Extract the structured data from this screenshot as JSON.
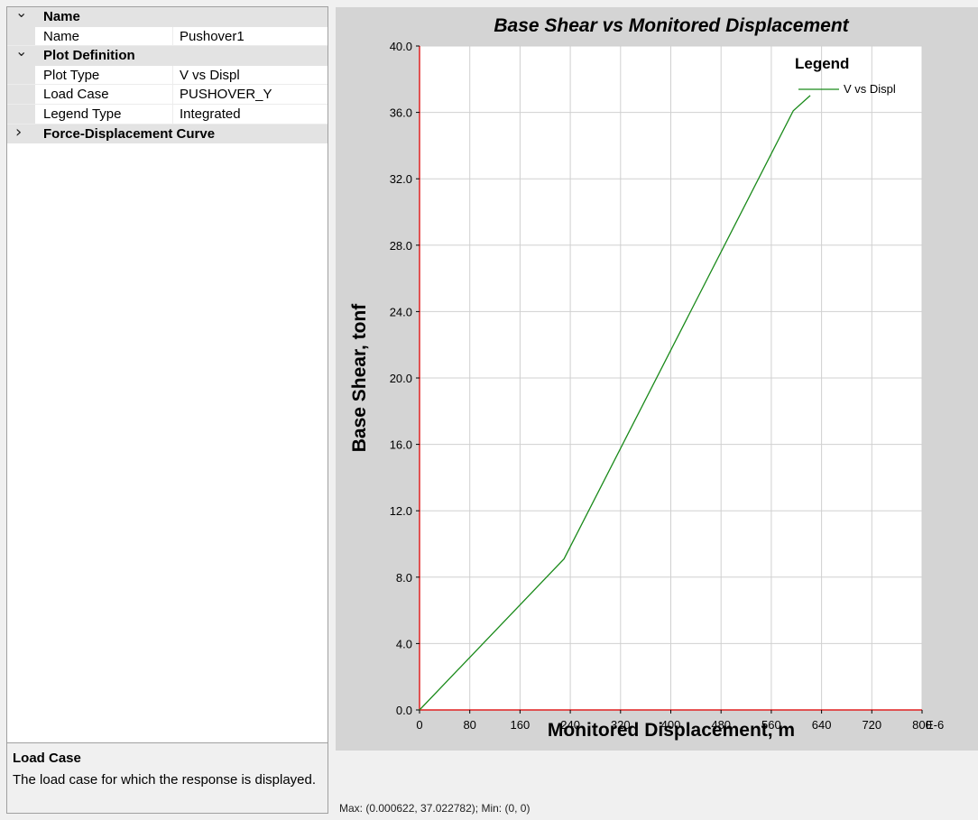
{
  "properties": {
    "categories": [
      {
        "label": "Name",
        "expanded": true,
        "icon": "chevron-down-icon",
        "rows": [
          {
            "name": "Name",
            "value": "Pushover1"
          }
        ]
      },
      {
        "label": "Plot Definition",
        "expanded": true,
        "icon": "chevron-down-icon",
        "rows": [
          {
            "name": "Plot Type",
            "value": "V vs Displ"
          },
          {
            "name": "Load Case",
            "value": "PUSHOVER_Y"
          },
          {
            "name": "Legend Type",
            "value": "Integrated"
          }
        ]
      },
      {
        "label": "Force-Displacement Curve",
        "expanded": false,
        "icon": "chevron-right-icon",
        "rows": []
      }
    ]
  },
  "help": {
    "title": "Load Case",
    "text": "The load case for which the response is displayed."
  },
  "status": {
    "text": "Max: (0.000622, 37.022782);  Min: (0, 0)"
  },
  "colors": {
    "series_line": "#1a8a1a",
    "axis_line": "#e02020",
    "chart_background": "#d4d4d4",
    "plot_background": "#ffffff",
    "grid_line": "#d0d0d0"
  },
  "chart_data": {
    "type": "line",
    "title": "Base Shear vs Monitored Displacement",
    "xlabel": "Monitored Displacement, m",
    "ylabel": "Base Shear, tonf",
    "x_scale_label": "E-6",
    "xlim": [
      0,
      800
    ],
    "ylim": [
      0,
      40
    ],
    "x_ticks": [
      "0",
      "80",
      "160",
      "240",
      "320",
      "400",
      "480",
      "560",
      "640",
      "720",
      "800"
    ],
    "y_ticks": [
      "0.0",
      "4.0",
      "8.0",
      "12.0",
      "16.0",
      "20.0",
      "24.0",
      "28.0",
      "32.0",
      "36.0",
      "40.0"
    ],
    "grid": true,
    "legend": {
      "title": "Legend",
      "position": "top-right"
    },
    "series": [
      {
        "name": "V vs Displ",
        "x": [
          0,
          230,
          595,
          622
        ],
        "y": [
          0,
          9.1,
          36.1,
          37.02
        ]
      }
    ]
  }
}
